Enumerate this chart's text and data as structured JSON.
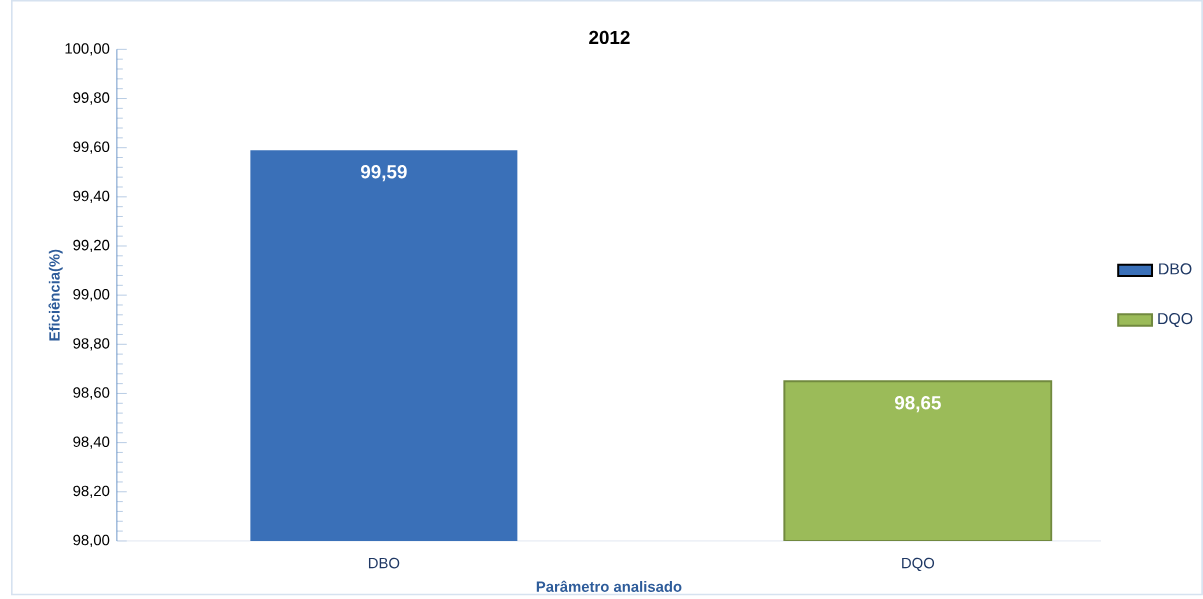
{
  "chart_data": {
    "type": "bar",
    "title": "2012",
    "xlabel": "Parâmetro analisado",
    "ylabel": "Eficiência(%)",
    "categories": [
      "DBO",
      "DQO"
    ],
    "series": [
      {
        "name": "DBO",
        "color": "#3a70b8",
        "values": [
          99.59,
          null
        ],
        "value_labels": [
          "99,59",
          null
        ]
      },
      {
        "name": "DQO",
        "color": "#9bbb59",
        "values": [
          null,
          98.65
        ],
        "value_labels": [
          null,
          "98,65"
        ]
      }
    ],
    "ylim": [
      98,
      100
    ],
    "yticks": [
      {
        "value": 98,
        "label": "98,00"
      },
      {
        "value": 98.2,
        "label": "98,20"
      },
      {
        "value": 98.4,
        "label": "98,40"
      },
      {
        "value": 98.6,
        "label": "98,60"
      },
      {
        "value": 98.8,
        "label": "98,80"
      },
      {
        "value": 99,
        "label": "99,00"
      },
      {
        "value": 99.2,
        "label": "99,20"
      },
      {
        "value": 99.4,
        "label": "99,40"
      },
      {
        "value": 99.6,
        "label": "99,60"
      },
      {
        "value": 99.8,
        "label": "99,80"
      },
      {
        "value": 100,
        "label": "100,00"
      }
    ],
    "grid": false,
    "legend": "right"
  }
}
